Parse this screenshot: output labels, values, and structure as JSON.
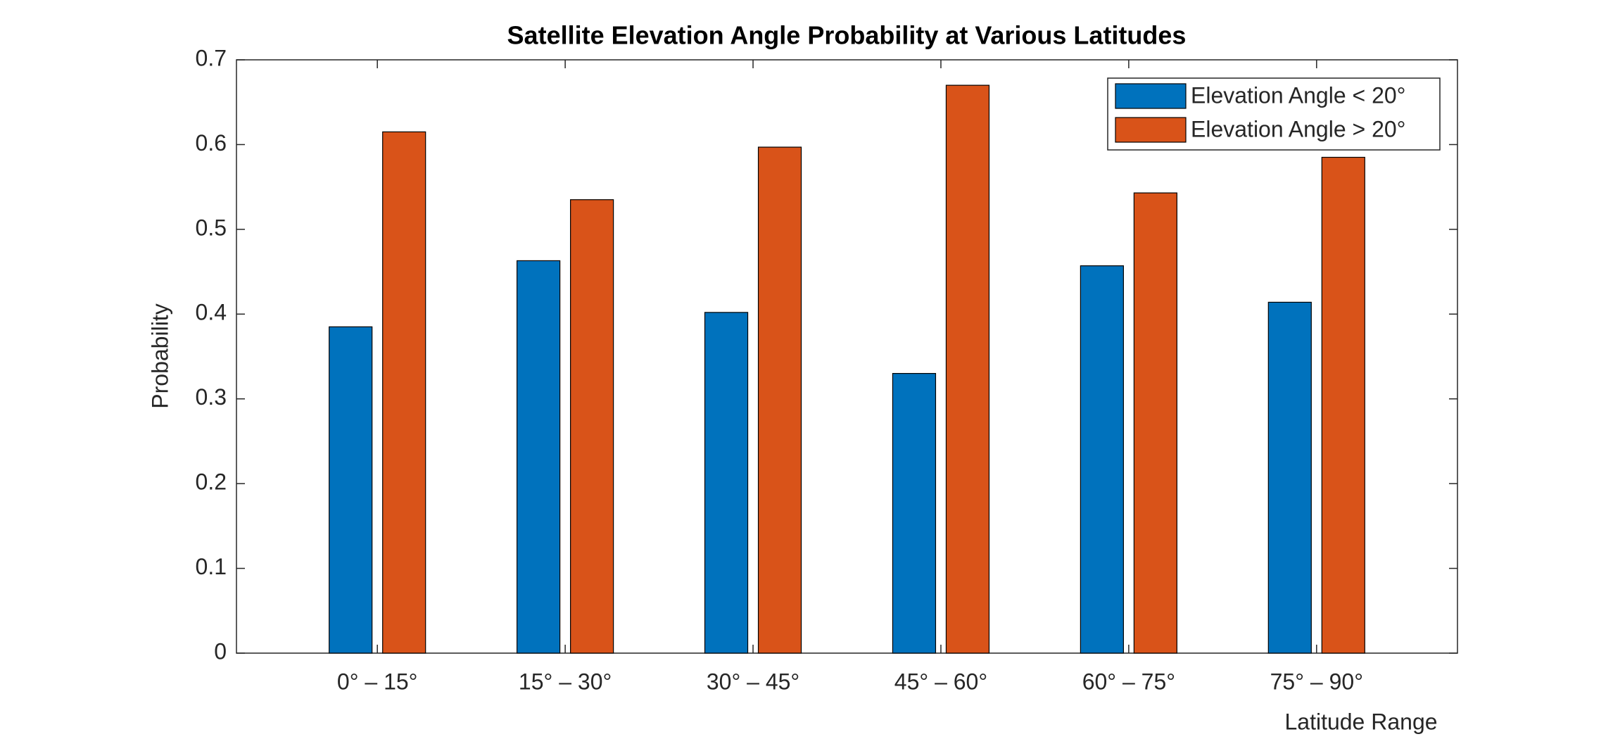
{
  "chart_data": {
    "type": "bar",
    "title": "Satellite Elevation Angle Probability at Various Latitudes",
    "x_label": "Latitude Range",
    "y_label": "Probability",
    "categories": [
      "0° – 15°",
      "15° – 30°",
      "30° – 45°",
      "45° – 60°",
      "60° – 75°",
      "75° – 90°"
    ],
    "series": [
      {
        "name": "Elevation Angle < 20°",
        "color": "#0072bd",
        "values": [
          0.385,
          0.463,
          0.402,
          0.33,
          0.457,
          0.414
        ]
      },
      {
        "name": "Elevation Angle > 20°",
        "color": "#d95319",
        "values": [
          0.615,
          0.535,
          0.597,
          0.67,
          0.543,
          0.585
        ]
      }
    ],
    "ylim": [
      0,
      0.7
    ],
    "yticks": [
      0,
      0.1,
      0.2,
      0.3,
      0.4,
      0.5,
      0.6,
      0.7
    ],
    "legend": "northeast",
    "grid": false
  }
}
